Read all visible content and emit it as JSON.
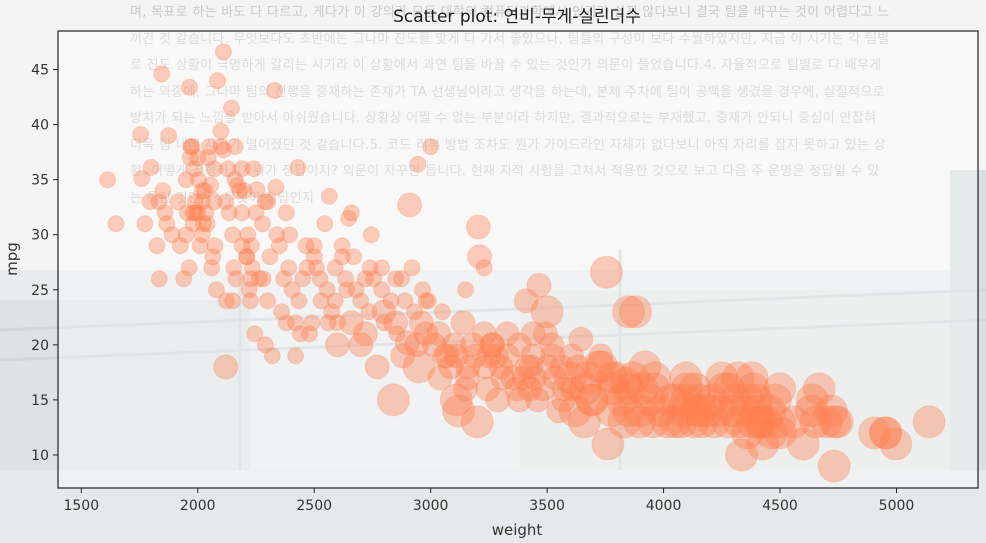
{
  "background_text": "며, 목표로 하는 바도 다 다르고, 게다가 이 강의가 모든 대학의 컴퓨터과학에서 인기가 쉽지 않다보니 결국 팀을 바꾸는 것이 어렵다고 느끼긴 것 같습니다. 무엇보다도 초반에는 그나마 진도를 맞게 다 가서 좋았으나, 팀들의 구성이 보다 수월하였지만, 지금 이 시기는 각 팀별로 진도 상황이 극명하게 갈리는 시기라 이 상황에서 과연 팀을 바꿀 수 있는 것인가 의문이 들었습니다.4. 자율적으로 팀별로 다 배우게 하는 와중에, 그나마 팀의 진행을 중재하는 존재가 TA 선생님이라고 생각을 하는데, 본제 주차에 팀이 공백을 생겼을 경우에, 실질적으로 방치가 되는 느낌을 받아서 아쉬웠습니다. 상황상 어쩔 수 없는 부분이라 하지만, 결과적으로는 부재했고, 중재가 안되니 중심이 안잡혀 더욱 팀 내에 사기가 떨어졌던 것 같습니다.5. 코드 리뷰 방법 조차도 뭔가 가이드라인 자체가 없다보니 아직 자리를 잡지 못하고 있는 상황. 어떻게 진행하지? 뭐가 정답이지? 의문이 자꾸만 듭니다. 현재 지적 사항을 고쳐서 적용한 것으로 보고 다음 주 운영은 정답일 수 있는 틀린 것인가? 무엇이 정답인지",
  "colors": {
    "marker": "#FF7F50",
    "axes_bg": "#ffffff",
    "spine": "#222222"
  },
  "chart_data": {
    "type": "scatter",
    "title": "Scatter plot: 연비-무게-실린더수",
    "xlabel": "weight",
    "ylabel": "mpg",
    "xlim": [
      1400,
      5350
    ],
    "ylim": [
      7,
      48.5
    ],
    "xticks": [
      1500,
      2000,
      2500,
      3000,
      3500,
      4000,
      4500,
      5000
    ],
    "yticks": [
      10,
      15,
      20,
      25,
      30,
      35,
      40,
      45
    ],
    "size_encoding": "cylinders",
    "points": [
      [
        1613,
        35,
        4
      ],
      [
        1649,
        31,
        4
      ],
      [
        1755,
        39.1,
        4
      ],
      [
        1760,
        35.1,
        4
      ],
      [
        1773,
        31,
        4
      ],
      [
        1795,
        33,
        4
      ],
      [
        1800,
        36.1,
        4
      ],
      [
        1825,
        29,
        4
      ],
      [
        1834,
        33,
        4
      ],
      [
        1835,
        26,
        4
      ],
      [
        1845,
        44.6,
        4
      ],
      [
        1850,
        34,
        4
      ],
      [
        1867,
        31,
        4
      ],
      [
        1875,
        39,
        4
      ],
      [
        1925,
        29,
        4
      ],
      [
        1940,
        26,
        4
      ],
      [
        1950,
        30,
        4
      ],
      [
        1955,
        32,
        4
      ],
      [
        1963,
        27,
        4
      ],
      [
        1965,
        43.4,
        4
      ],
      [
        1968,
        37,
        4
      ],
      [
        1975,
        38,
        4
      ],
      [
        1980,
        32,
        4
      ],
      [
        1985,
        36,
        4
      ],
      [
        1990,
        33,
        4
      ],
      [
        2000,
        32,
        4
      ],
      [
        2003,
        35,
        4
      ],
      [
        2019,
        34,
        4
      ],
      [
        2020,
        30,
        4
      ],
      [
        2025,
        31,
        4
      ],
      [
        2035,
        32,
        4
      ],
      [
        2045,
        37,
        4
      ],
      [
        2050,
        38,
        4
      ],
      [
        2055,
        34.5,
        4
      ],
      [
        2065,
        28,
        4
      ],
      [
        2070,
        33,
        4
      ],
      [
        2074,
        29,
        4
      ],
      [
        2085,
        44,
        4
      ],
      [
        2100,
        39.4,
        4
      ],
      [
        2110,
        46.6,
        4
      ],
      [
        2110,
        37.7,
        4
      ],
      [
        2120,
        18,
        6
      ],
      [
        2123,
        24,
        4
      ],
      [
        2130,
        36,
        4
      ],
      [
        2135,
        32,
        4
      ],
      [
        2145,
        41.5,
        4
      ],
      [
        2150,
        30,
        4
      ],
      [
        2155,
        27,
        4
      ],
      [
        2160,
        35,
        4
      ],
      [
        2164,
        26,
        4
      ],
      [
        2171,
        34.5,
        4
      ],
      [
        2189,
        32,
        4
      ],
      [
        2190,
        36,
        4
      ],
      [
        2200,
        34,
        4
      ],
      [
        2210,
        28,
        4
      ],
      [
        2215,
        30,
        4
      ],
      [
        2220,
        25,
        4
      ],
      [
        2226,
        24,
        4
      ],
      [
        2228,
        26,
        4
      ],
      [
        2230,
        29,
        4
      ],
      [
        2234,
        27,
        4
      ],
      [
        2245,
        21,
        4
      ],
      [
        2254,
        34.1,
        4
      ],
      [
        2265,
        26,
        4
      ],
      [
        2278,
        31,
        4
      ],
      [
        2290,
        20,
        4
      ],
      [
        2300,
        33,
        4
      ],
      [
        2310,
        28,
        4
      ],
      [
        2320,
        19,
        4
      ],
      [
        2330,
        43.1,
        4
      ],
      [
        2335,
        34.3,
        4
      ],
      [
        2350,
        29,
        4
      ],
      [
        2370,
        26,
        4
      ],
      [
        2380,
        32,
        4
      ],
      [
        2395,
        30,
        4
      ],
      [
        2405,
        25,
        4
      ],
      [
        2420,
        22,
        4
      ],
      [
        2430,
        36.1,
        4
      ],
      [
        2434,
        24,
        4
      ],
      [
        2450,
        26,
        4
      ],
      [
        2465,
        29,
        4
      ],
      [
        2490,
        22,
        4
      ],
      [
        2500,
        28,
        4
      ],
      [
        2510,
        27,
        4
      ],
      [
        2525,
        26,
        4
      ],
      [
        2545,
        31,
        4
      ],
      [
        2556,
        25,
        4
      ],
      [
        2565,
        33.5,
        4
      ],
      [
        2575,
        23,
        4
      ],
      [
        2590,
        27,
        4
      ],
      [
        2600,
        22,
        4
      ],
      [
        2620,
        29,
        4
      ],
      [
        2635,
        26,
        4
      ],
      [
        2648,
        31.5,
        4
      ],
      [
        2660,
        32,
        4
      ],
      [
        2670,
        28,
        4
      ],
      [
        2700,
        24,
        4
      ],
      [
        2720,
        26,
        4
      ],
      [
        2735,
        23,
        4
      ],
      [
        2745,
        30,
        4
      ],
      [
        2755,
        26,
        4
      ],
      [
        2790,
        27,
        4
      ],
      [
        2800,
        22,
        4
      ],
      [
        2830,
        24,
        4
      ],
      [
        2855,
        21,
        4
      ],
      [
        2875,
        26,
        4
      ],
      [
        2890,
        24,
        4
      ],
      [
        2900,
        20.2,
        6
      ],
      [
        2910,
        32.7,
        6
      ],
      [
        2930,
        23,
        4
      ],
      [
        2945,
        36.4,
        4
      ],
      [
        2965,
        25,
        4
      ],
      [
        2990,
        24,
        4
      ],
      [
        3000,
        38,
        4
      ],
      [
        3015,
        20,
        6
      ],
      [
        3035,
        21,
        6
      ],
      [
        3060,
        19,
        6
      ],
      [
        3086,
        18,
        6
      ],
      [
        3102,
        20,
        6
      ],
      [
        3120,
        14,
        8
      ],
      [
        3139,
        22,
        6
      ],
      [
        3150,
        16,
        6
      ],
      [
        3158,
        17,
        6
      ],
      [
        3190,
        19,
        6
      ],
      [
        3205,
        30.7,
        6
      ],
      [
        3210,
        28,
        6
      ],
      [
        3233,
        18,
        6
      ],
      [
        3245,
        16,
        6
      ],
      [
        3264,
        20,
        6
      ],
      [
        3265,
        20,
        6
      ],
      [
        3282,
        19,
        6
      ],
      [
        3288,
        15,
        6
      ],
      [
        3302,
        18,
        6
      ],
      [
        3329,
        21,
        6
      ],
      [
        3353,
        17,
        6
      ],
      [
        3380,
        20,
        6
      ],
      [
        3381,
        15,
        6
      ],
      [
        3410,
        24,
        6
      ],
      [
        3415,
        18,
        6
      ],
      [
        3425,
        16,
        6
      ],
      [
        3430,
        18,
        6
      ],
      [
        3439,
        19,
        6
      ],
      [
        3445,
        17,
        6
      ],
      [
        3459,
        15,
        6
      ],
      [
        3465,
        25.4,
        6
      ],
      [
        3493,
        21,
        6
      ],
      [
        3504,
        18,
        6
      ],
      [
        3525,
        19,
        6
      ],
      [
        3535,
        17,
        6
      ],
      [
        3563,
        18,
        6
      ],
      [
        3570,
        15,
        6
      ],
      [
        3574,
        16,
        6
      ],
      [
        3605,
        19,
        6
      ],
      [
        3620,
        14,
        8
      ],
      [
        3632,
        18,
        6
      ],
      [
        3645,
        20.5,
        6
      ],
      [
        3664,
        16,
        8
      ],
      [
        3672,
        17,
        8
      ],
      [
        3693,
        15,
        8
      ],
      [
        3730,
        19,
        6
      ],
      [
        3735,
        18,
        8
      ],
      [
        3755,
        26.6,
        8
      ],
      [
        3761,
        11,
        8
      ],
      [
        3777,
        14,
        8
      ],
      [
        3785,
        16,
        8
      ],
      [
        3795,
        17,
        8
      ],
      [
        3821,
        15,
        8
      ],
      [
        3830,
        13,
        8
      ],
      [
        3840,
        16.5,
        8
      ],
      [
        3850,
        14,
        8
      ],
      [
        3870,
        17,
        8
      ],
      [
        3880,
        23,
        8
      ],
      [
        3897,
        13,
        8
      ],
      [
        3900,
        14,
        8
      ],
      [
        3907,
        16,
        8
      ],
      [
        3940,
        15,
        8
      ],
      [
        3955,
        13,
        8
      ],
      [
        3962,
        17,
        8
      ],
      [
        3988,
        14,
        8
      ],
      [
        4017,
        13,
        8
      ],
      [
        4054,
        15,
        8
      ],
      [
        4077,
        13,
        8
      ],
      [
        4082,
        14,
        8
      ],
      [
        4096,
        17,
        8
      ],
      [
        4100,
        15,
        8
      ],
      [
        4129,
        13,
        8
      ],
      [
        4135,
        16,
        8
      ],
      [
        4141,
        14,
        8
      ],
      [
        4154,
        15,
        8
      ],
      [
        4165,
        13,
        8
      ],
      [
        4190,
        14,
        8
      ],
      [
        4209,
        15,
        8
      ],
      [
        4215,
        13,
        8
      ],
      [
        4237,
        14,
        8
      ],
      [
        4257,
        16,
        8
      ],
      [
        4274,
        13,
        8
      ],
      [
        4295,
        14,
        8
      ],
      [
        4308,
        15,
        8
      ],
      [
        4325,
        13,
        8
      ],
      [
        4335,
        10,
        8
      ],
      [
        4354,
        14,
        8
      ],
      [
        4360,
        12,
        8
      ],
      [
        4363,
        15,
        8
      ],
      [
        4382,
        13,
        8
      ],
      [
        4385,
        16,
        8
      ],
      [
        4399,
        14,
        8
      ],
      [
        4422,
        13,
        8
      ],
      [
        4425,
        11,
        8
      ],
      [
        4440,
        13,
        8
      ],
      [
        4456,
        14,
        8
      ],
      [
        4464,
        12,
        8
      ],
      [
        4498,
        13,
        8
      ],
      [
        4499,
        16,
        8
      ],
      [
        4502,
        12,
        8
      ],
      [
        4633,
        14,
        8
      ],
      [
        4638,
        15,
        8
      ],
      [
        4654,
        13,
        8
      ],
      [
        4668,
        16,
        8
      ],
      [
        4699,
        13,
        8
      ],
      [
        4735,
        13,
        8
      ],
      [
        4732,
        9,
        8
      ],
      [
        4746,
        13,
        8
      ],
      [
        4906,
        12,
        8
      ],
      [
        4952,
        12,
        8
      ],
      [
        4955,
        12,
        8
      ],
      [
        4997,
        11,
        8
      ],
      [
        5140,
        13,
        8
      ],
      [
        4400,
        15,
        8
      ],
      [
        4380,
        17,
        8
      ],
      [
        4250,
        17,
        8
      ],
      [
        4100,
        16,
        8
      ],
      [
        4050,
        13,
        8
      ],
      [
        3850,
        16,
        8
      ],
      [
        3720,
        18,
        8
      ],
      [
        3690,
        15,
        8
      ],
      [
        3600,
        17,
        8
      ],
      [
        3520,
        20,
        6
      ],
      [
        3400,
        17,
        6
      ],
      [
        3330,
        19,
        6
      ],
      [
        3230,
        21,
        6
      ],
      [
        3160,
        18,
        6
      ],
      [
        3070,
        19,
        6
      ],
      [
        2980,
        21,
        6
      ],
      [
        2940,
        20,
        6
      ],
      [
        2850,
        22,
        6
      ],
      [
        2770,
        18,
        6
      ],
      [
        2700,
        20,
        6
      ],
      [
        2640,
        25,
        4
      ],
      [
        2590,
        24,
        4
      ],
      [
        2530,
        24,
        4
      ],
      [
        2470,
        27,
        4
      ],
      [
        2440,
        21,
        4
      ],
      [
        2380,
        22,
        4
      ],
      [
        2340,
        30,
        4
      ],
      [
        2290,
        33,
        4
      ],
      [
        2250,
        32,
        4
      ],
      [
        2190,
        29,
        4
      ],
      [
        2150,
        24,
        4
      ],
      [
        2120,
        33,
        4
      ],
      [
        2070,
        36,
        4
      ],
      [
        2040,
        31,
        4
      ],
      [
        2010,
        29,
        4
      ],
      [
        1980,
        31,
        4
      ],
      [
        1950,
        35,
        4
      ],
      [
        1915,
        33,
        4
      ],
      [
        1890,
        30,
        4
      ],
      [
        1860,
        32,
        4
      ],
      [
        2600,
        20,
        6
      ],
      [
        2660,
        22,
        6
      ],
      [
        2720,
        21,
        6
      ],
      [
        2800,
        23,
        6
      ],
      [
        2880,
        19,
        6
      ],
      [
        2960,
        22,
        6
      ],
      [
        3040,
        17,
        6
      ],
      [
        3110,
        19,
        6
      ],
      [
        3180,
        20,
        6
      ],
      [
        3250,
        19,
        6
      ],
      [
        3310,
        17,
        6
      ],
      [
        3370,
        16,
        6
      ],
      [
        3440,
        21,
        6
      ],
      [
        3480,
        16,
        6
      ],
      [
        3550,
        14,
        6
      ],
      [
        3610,
        16,
        6
      ],
      [
        3660,
        13,
        8
      ],
      [
        3780,
        17,
        8
      ],
      [
        3920,
        18,
        8
      ],
      [
        3960,
        16,
        8
      ],
      [
        4030,
        15,
        8
      ],
      [
        4160,
        14,
        8
      ],
      [
        4280,
        16,
        8
      ],
      [
        4320,
        17,
        8
      ],
      [
        4410,
        13,
        8
      ],
      [
        4480,
        15,
        8
      ],
      [
        4560,
        13,
        8
      ],
      [
        4600,
        11,
        8
      ],
      [
        4720,
        14,
        8
      ],
      [
        3200,
        13,
        8
      ],
      [
        3110,
        15,
        8
      ],
      [
        2840,
        15,
        8
      ],
      [
        2950,
        18,
        8
      ],
      [
        3500,
        23,
        8
      ],
      [
        3850,
        23,
        8
      ],
      [
        2280,
        26,
        4
      ],
      [
        2390,
        27,
        4
      ],
      [
        2500,
        29,
        4
      ],
      [
        2210,
        28,
        4
      ],
      [
        2080,
        25,
        4
      ],
      [
        2060,
        27,
        4
      ],
      [
        2020,
        33,
        4
      ],
      [
        1990,
        32,
        4
      ],
      [
        1970,
        38,
        4
      ],
      [
        2000,
        37,
        4
      ],
      [
        2030,
        34,
        4
      ],
      [
        2100,
        38,
        4
      ],
      [
        2160,
        38,
        4
      ],
      [
        2180,
        34,
        4
      ],
      [
        2240,
        36,
        4
      ],
      [
        2300,
        24,
        4
      ],
      [
        2360,
        23,
        4
      ],
      [
        2420,
        19,
        4
      ],
      [
        2480,
        21,
        4
      ],
      [
        2560,
        22,
        4
      ],
      [
        2620,
        28,
        4
      ],
      [
        2680,
        25,
        4
      ],
      [
        2740,
        27,
        4
      ],
      [
        2790,
        25,
        4
      ],
      [
        2850,
        26,
        4
      ],
      [
        2920,
        27,
        4
      ],
      [
        2980,
        24,
        4
      ],
      [
        3050,
        23,
        4
      ],
      [
        3150,
        25,
        4
      ],
      [
        3230,
        27,
        4
      ]
    ]
  }
}
